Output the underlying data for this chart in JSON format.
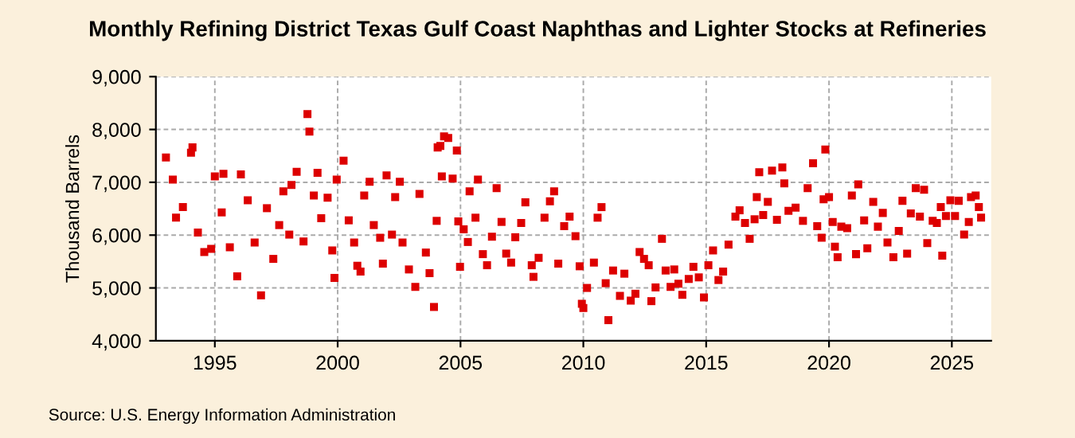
{
  "chart_data": {
    "type": "scatter",
    "title": "Monthly Refining District Texas Gulf Coast Naphthas and Lighter Stocks at Refineries",
    "ylabel": "Thousand Barrels",
    "annotations": [
      "Source: U.S. Energy Information Administration"
    ],
    "marker": "square",
    "grid": true,
    "legend": false,
    "xlim": [
      1992.6,
      2026.6
    ],
    "xticks": [
      1995,
      2000,
      2005,
      2010,
      2015,
      2020,
      2025
    ],
    "ylim": [
      4000,
      9000
    ],
    "yticks": [
      {
        "value": 4000,
        "label": "4,000"
      },
      {
        "value": 5000,
        "label": "5,000"
      },
      {
        "value": 6000,
        "label": "6,000"
      },
      {
        "value": 7000,
        "label": "7,000"
      },
      {
        "value": 8000,
        "label": "8,000"
      },
      {
        "value": 9000,
        "label": "9,000"
      }
    ],
    "series": [
      {
        "color": "#dd0000",
        "x": [
          1993.01,
          1993.29,
          1993.42,
          1993.7,
          1994.03,
          1994.09,
          1994.31,
          1994.57,
          1994.85,
          1995.0,
          1995.28,
          1995.35,
          1995.61,
          1995.91,
          1996.06,
          1996.34,
          1996.62,
          1996.88,
          1997.12,
          1997.38,
          1997.62,
          1997.79,
          1998.03,
          1998.12,
          1998.33,
          1998.61,
          1998.77,
          1998.85,
          1999.03,
          1999.18,
          1999.33,
          1999.59,
          1999.78,
          1999.87,
          1999.96,
          2000.24,
          2000.45,
          2000.67,
          2000.8,
          2000.93,
          2001.08,
          2001.3,
          2001.47,
          2001.73,
          2001.84,
          2001.99,
          2002.21,
          2002.34,
          2002.53,
          2002.64,
          2002.9,
          2003.16,
          2003.33,
          2003.59,
          2003.74,
          2003.92,
          2004.03,
          2004.07,
          2004.18,
          2004.24,
          2004.33,
          2004.5,
          2004.68,
          2004.85,
          2004.91,
          2004.98,
          2005.13,
          2005.3,
          2005.37,
          2005.61,
          2005.71,
          2005.91,
          2006.08,
          2006.28,
          2006.47,
          2006.67,
          2006.86,
          2007.06,
          2007.23,
          2007.47,
          2007.64,
          2007.9,
          2007.97,
          2008.18,
          2008.42,
          2008.64,
          2008.81,
          2008.98,
          2009.22,
          2009.44,
          2009.68,
          2009.85,
          2009.94,
          2010.0,
          2010.15,
          2010.43,
          2010.58,
          2010.74,
          2010.91,
          2011.02,
          2011.21,
          2011.49,
          2011.67,
          2011.93,
          2012.12,
          2012.29,
          2012.47,
          2012.66,
          2012.77,
          2012.94,
          2013.2,
          2013.35,
          2013.55,
          2013.7,
          2013.87,
          2014.03,
          2014.29,
          2014.48,
          2014.7,
          2014.91,
          2015.09,
          2015.28,
          2015.5,
          2015.69,
          2015.91,
          2016.19,
          2016.36,
          2016.58,
          2016.77,
          2016.97,
          2017.06,
          2017.16,
          2017.32,
          2017.51,
          2017.68,
          2017.88,
          2018.1,
          2018.18,
          2018.35,
          2018.64,
          2018.94,
          2019.13,
          2019.35,
          2019.52,
          2019.7,
          2019.78,
          2019.85,
          2020.0,
          2020.15,
          2020.24,
          2020.35,
          2020.5,
          2020.74,
          2020.93,
          2021.1,
          2021.19,
          2021.43,
          2021.56,
          2021.8,
          2021.99,
          2022.19,
          2022.38,
          2022.62,
          2022.84,
          2022.99,
          2023.18,
          2023.33,
          2023.53,
          2023.7,
          2023.87,
          2024.0,
          2024.22,
          2024.39,
          2024.55,
          2024.61,
          2024.76,
          2024.94,
          2025.13,
          2025.28,
          2025.5,
          2025.69,
          2025.78,
          2025.97,
          2026.1,
          2026.19
        ],
        "values": [
          7470,
          7050,
          6330,
          6530,
          7560,
          7660,
          6050,
          5680,
          5740,
          7110,
          6430,
          7160,
          5770,
          5220,
          7150,
          6660,
          5860,
          4860,
          6510,
          5550,
          6190,
          6830,
          6010,
          6950,
          7200,
          5880,
          8290,
          7960,
          6750,
          7180,
          6320,
          6710,
          5710,
          5190,
          7050,
          7410,
          6280,
          5860,
          5420,
          5310,
          6750,
          7010,
          6190,
          5950,
          5460,
          7130,
          6010,
          6720,
          7010,
          5860,
          5350,
          5020,
          6780,
          5670,
          5280,
          4640,
          6270,
          7660,
          7690,
          7110,
          7870,
          7840,
          7070,
          7600,
          6260,
          5400,
          6110,
          5870,
          6830,
          6330,
          7050,
          5640,
          5430,
          5970,
          6890,
          6250,
          5650,
          5480,
          5960,
          6230,
          6620,
          5430,
          5210,
          5570,
          6330,
          6640,
          6830,
          5460,
          6170,
          6350,
          5980,
          5410,
          4700,
          4620,
          5000,
          5480,
          6330,
          6530,
          5090,
          4390,
          5330,
          4850,
          5270,
          4760,
          4890,
          5680,
          5550,
          5430,
          4750,
          5010,
          5930,
          5330,
          5020,
          5350,
          5080,
          4870,
          5170,
          5400,
          5200,
          4820,
          5430,
          5710,
          5150,
          5310,
          5820,
          6350,
          6470,
          6230,
          5930,
          6300,
          6720,
          7190,
          6380,
          6630,
          7220,
          6290,
          7280,
          6980,
          6460,
          6520,
          6270,
          6890,
          7360,
          6170,
          5950,
          6680,
          7620,
          6720,
          6250,
          5780,
          5580,
          6160,
          6130,
          6750,
          5640,
          6960,
          6280,
          5750,
          6630,
          6160,
          6420,
          5860,
          5580,
          6080,
          6650,
          5650,
          6410,
          6890,
          6350,
          6860,
          5850,
          6270,
          6230,
          6530,
          5610,
          6360,
          6660,
          6360,
          6650,
          6010,
          6250,
          6720,
          6750,
          6530,
          6330
        ]
      }
    ]
  }
}
